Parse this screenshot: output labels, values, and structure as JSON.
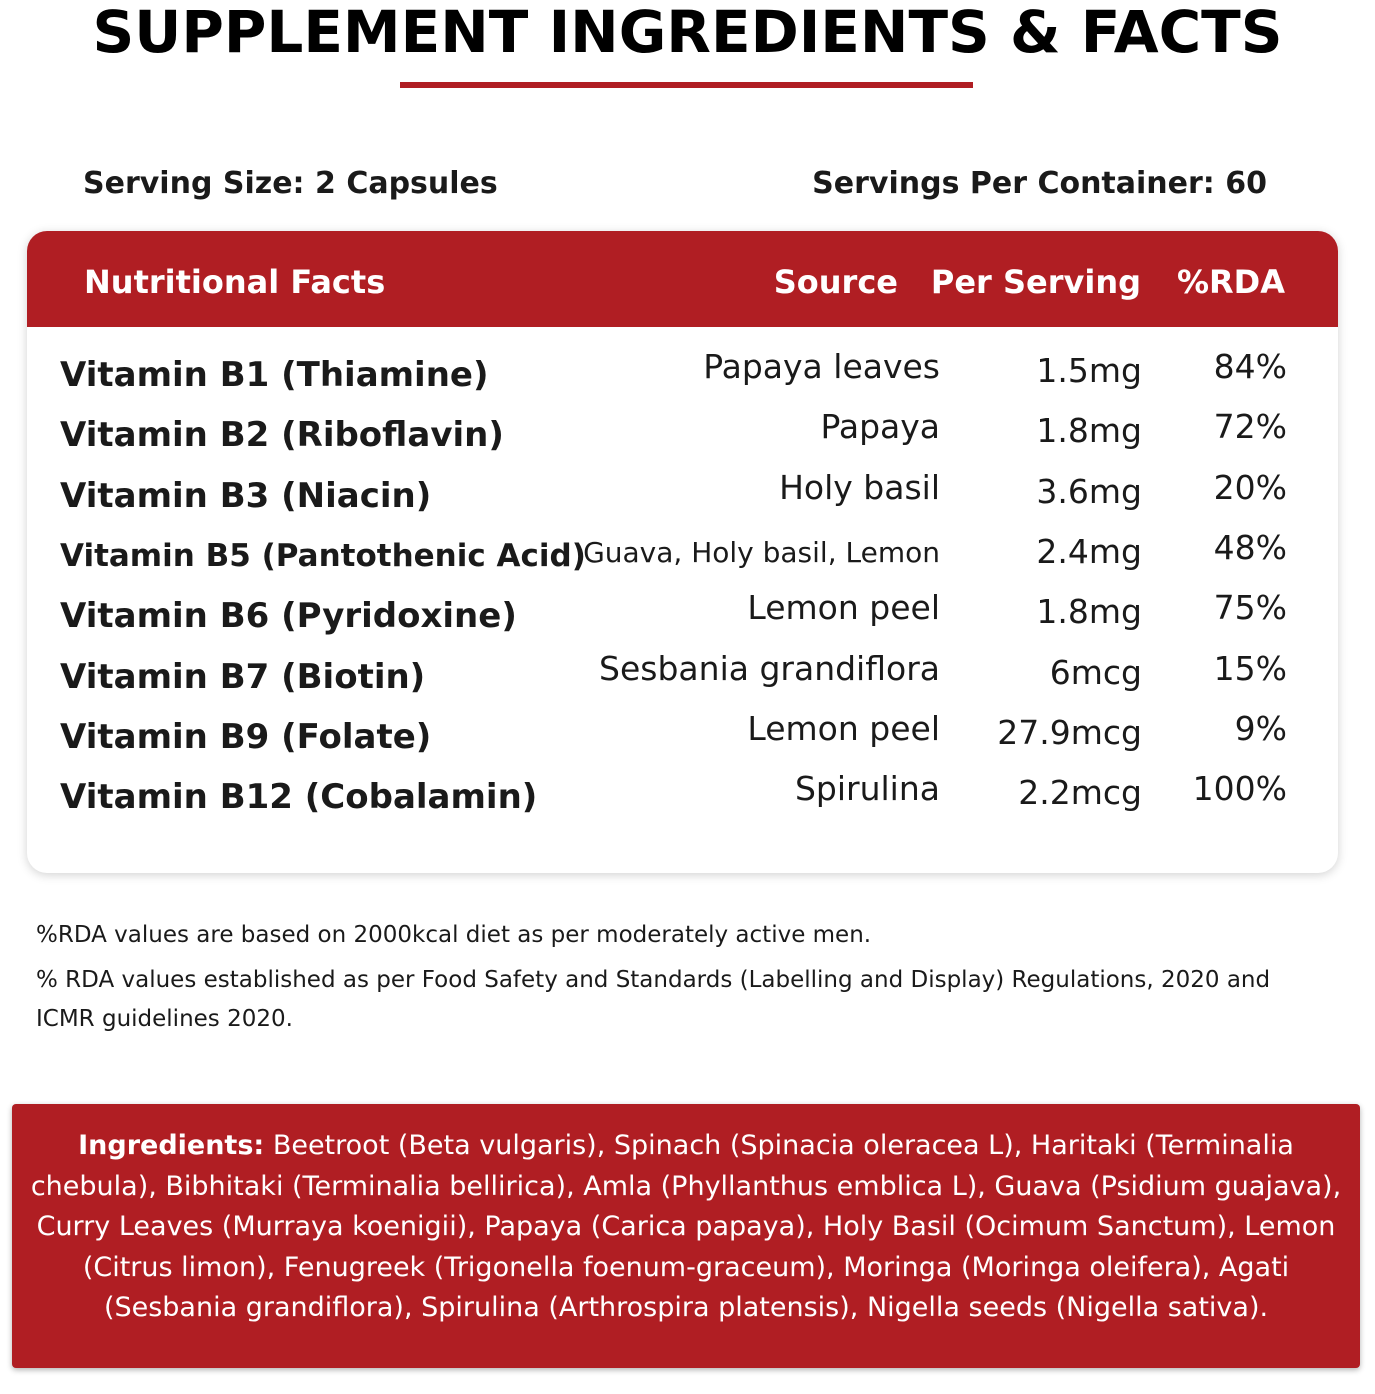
{
  "header": {
    "title": "SUPPLEMENT INGREDIENTS & FACTS"
  },
  "serving": {
    "size": "Serving Size: 2 Capsules",
    "per_container": "Servings Per Container: 60"
  },
  "table": {
    "columns": [
      "Nutritional Facts",
      "Source",
      "Per Serving",
      "%RDA"
    ],
    "rows": [
      [
        "Vitamin B1 (Thiamine)",
        "Papaya leaves",
        "1.5mg",
        "84%"
      ],
      [
        "Vitamin B2 (Riboflavin)",
        "Papaya",
        "1.8mg",
        "72%"
      ],
      [
        "Vitamin B3 (Niacin)",
        "Holy basil",
        "3.6mg",
        "20%"
      ],
      [
        "Vitamin B5 (Pantothenic Acid)",
        "Guava, Holy basil, Lemon",
        "2.4mg",
        "48%"
      ],
      [
        "Vitamin B6 (Pyridoxine)",
        "Lemon peel",
        "1.8mg",
        "75%"
      ],
      [
        "Vitamin B7 (Biotin)",
        "Sesbania grandiflora",
        "6mcg",
        "15%"
      ],
      [
        "Vitamin B9 (Folate)",
        "Lemon peel",
        "27.9mcg",
        "9%"
      ],
      [
        "Vitamin B12 (Cobalamin)",
        "Spirulina",
        "2.2mcg",
        "100%"
      ]
    ]
  },
  "notes": [
    "%RDA values are based on 2000kcal diet as per moderately active men.",
    "% RDA values established as per Food Safety and Standards (Labelling and Display) Regulations, 2020 and ICMR guidelines 2020."
  ],
  "ingredients": {
    "label": "Ingredients:",
    "text": "Beetroot (Beta vulgaris), Spinach (Spinacia oleracea L), Haritaki (Terminalia chebula), Bibhitaki (Terminalia bellirica), Amla (Phyllanthus emblica L), Guava (Psidium guajava), Curry Leaves (Murraya koenigii), Papaya (Carica papaya), Holy Basil (Ocimum Sanctum), Lemon (Citrus limon), Fenugreek (Trigonella foenum-graceum), Moringa (Moringa oleifera), Agati (Sesbania grandiflora), Spirulina (Arthrospira platensis), Nigella seeds (Nigella sativa)."
  }
}
